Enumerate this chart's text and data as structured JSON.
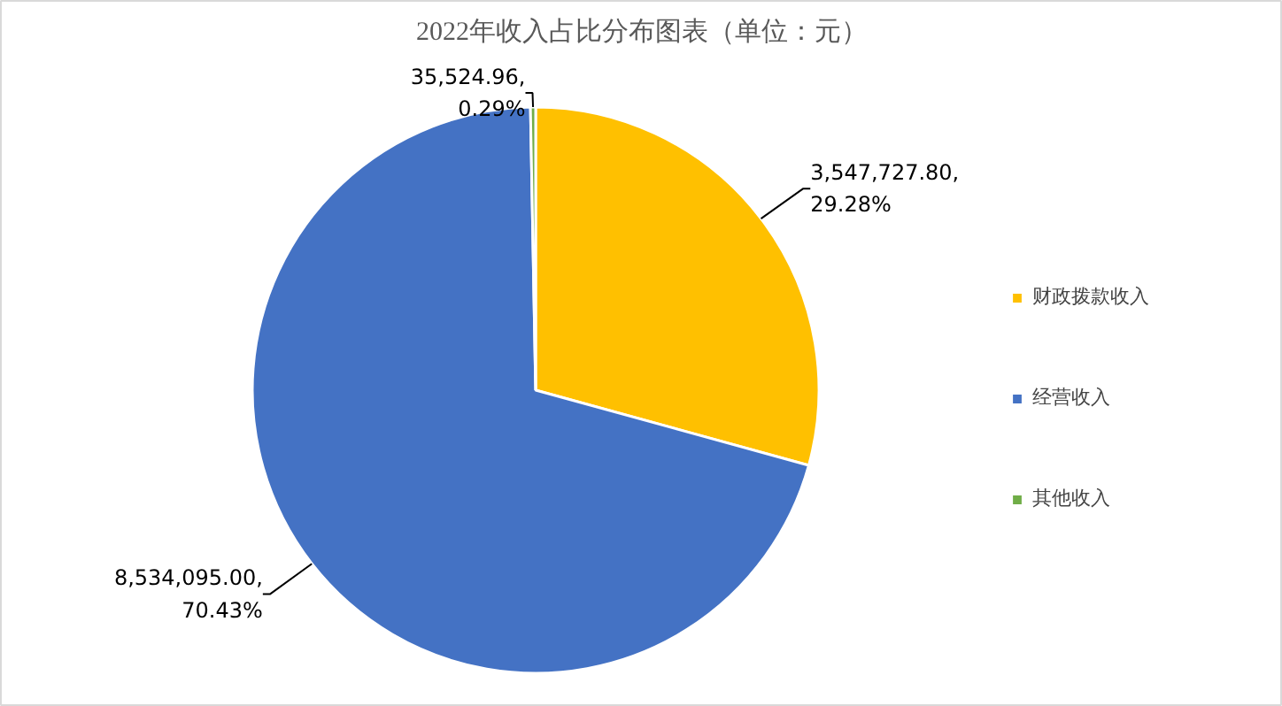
{
  "chart_data": {
    "type": "pie",
    "title": "2022年收入占比分布图表（单位：元）",
    "categories": [
      "财政拨款收入",
      "经营收入",
      "其他收入"
    ],
    "values": [
      3547727.8,
      8534095.0,
      35524.96
    ],
    "colors": [
      "#ffc000",
      "#4472c4",
      "#70ad47"
    ],
    "value_labels": [
      "3,547,727.80,\n29.28%",
      "8,534,095.00,\n70.43%",
      "35,524.96,\n0.29%"
    ],
    "legend": "right"
  }
}
